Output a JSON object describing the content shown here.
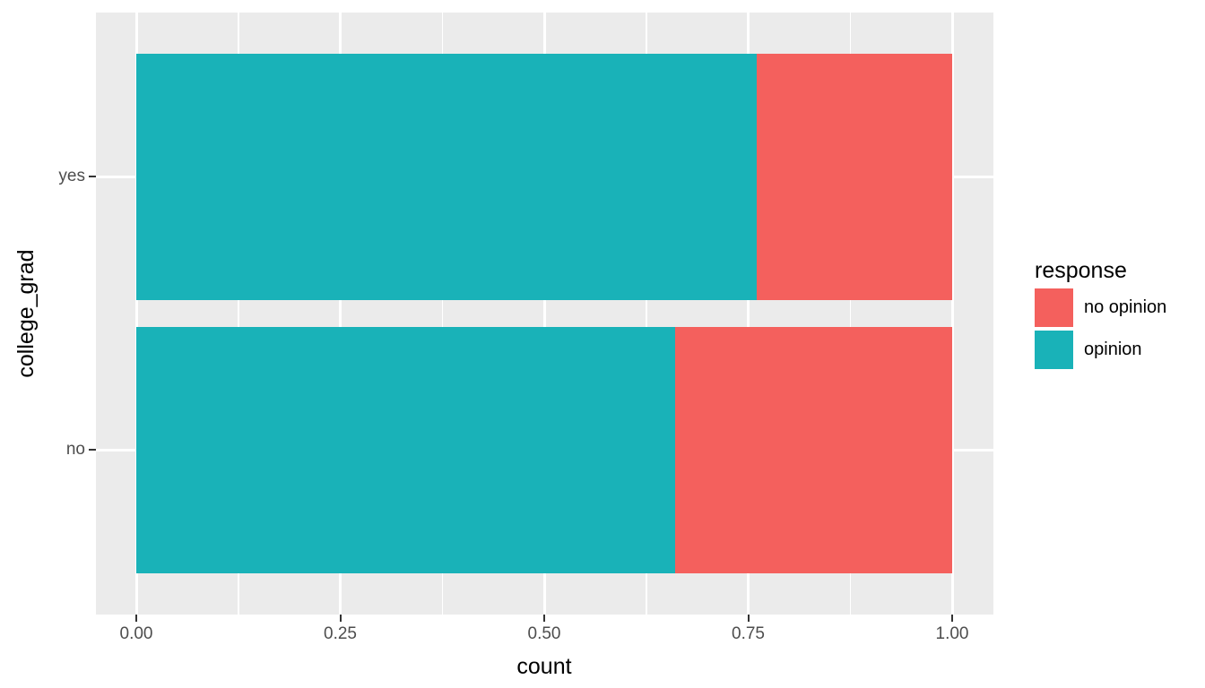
{
  "chart_data": {
    "type": "bar",
    "orientation": "horizontal",
    "stacked": true,
    "stack_normalized": true,
    "title": "",
    "xlabel": "count",
    "ylabel": "college_grad",
    "categories": [
      "yes",
      "no"
    ],
    "series": [
      {
        "name": "opinion",
        "color": "#19B2B8",
        "values": [
          0.76,
          0.66
        ]
      },
      {
        "name": "no opinion",
        "color": "#F4605D",
        "values": [
          0.24,
          0.34
        ]
      }
    ],
    "xlim": [
      0,
      1
    ],
    "x_ticks": [
      {
        "value": 0,
        "label": "0.00"
      },
      {
        "value": 0.25,
        "label": "0.25"
      },
      {
        "value": 0.5,
        "label": "0.50"
      },
      {
        "value": 0.75,
        "label": "0.75"
      },
      {
        "value": 1.0,
        "label": "1.00"
      }
    ],
    "grid": true,
    "minor_grid": true,
    "legend": {
      "title": "response",
      "position": "right",
      "items": [
        {
          "label": "no opinion",
          "color": "#F4605D"
        },
        {
          "label": "opinion",
          "color": "#19B2B8"
        }
      ]
    },
    "colors": {
      "panel_background": "#EBEBEB",
      "gridline": "#FFFFFF",
      "tick_mark": "#333333",
      "tick_label": "#4D4D4D",
      "title_text": "#000000"
    }
  }
}
